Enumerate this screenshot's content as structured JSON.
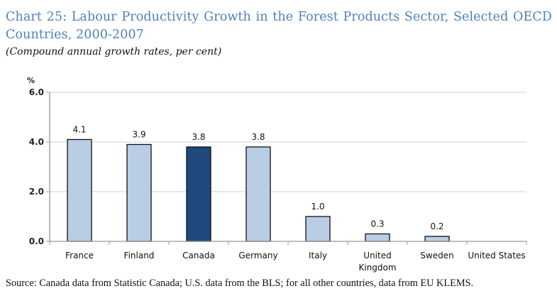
{
  "title": "Chart 25: Labour Productivity Growth in the Forest Products Sector, Selected OECD Countries, 2000-2007",
  "subtitle": "(Compound annual growth rates, per cent)",
  "source": "Source: Canada data from Statistic Canada; U.S. data from the BLS; for all other countries, data from EU KLEMS.",
  "colors": {
    "bar": "#b9cde5",
    "highlight": "#1f497d",
    "title": "#4f81bd",
    "grid": "#d9d9d9"
  },
  "chart_data": {
    "type": "bar",
    "title": "Chart 25: Labour Productivity Growth in the Forest Products Sector, Selected OECD Countries, 2000-2007",
    "subtitle": "(Compound annual growth rates, per cent)",
    "ylabel": "%",
    "xlabel": "",
    "ylim": [
      0,
      6
    ],
    "yticks": [
      "0.0",
      "2.0",
      "4.0",
      "6.0"
    ],
    "ytick_values": [
      0,
      2,
      4,
      6
    ],
    "grid": true,
    "categories": [
      "France",
      "Finland",
      "Canada",
      "Germany",
      "Italy",
      "United Kingdom",
      "Sweden",
      "United States"
    ],
    "category_lines": [
      [
        "France"
      ],
      [
        "Finland"
      ],
      [
        "Canada"
      ],
      [
        "Germany"
      ],
      [
        "Italy"
      ],
      [
        "United",
        "Kingdom"
      ],
      [
        "Sweden"
      ],
      [
        "United States"
      ]
    ],
    "values": [
      4.1,
      3.9,
      3.8,
      3.8,
      1.0,
      0.3,
      0.2,
      null
    ],
    "data_labels": [
      "4.1",
      "3.9",
      "3.8",
      "3.8",
      "1.0",
      "0.3",
      "0.2",
      ""
    ],
    "highlight": "Canada"
  }
}
